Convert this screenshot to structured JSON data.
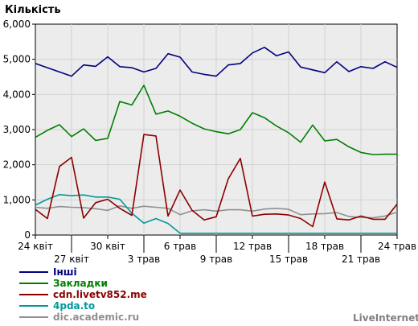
{
  "chart_data": {
    "type": "line",
    "ylabel": "Кількість",
    "ylim": [
      0,
      6000
    ],
    "yticks": [
      "0",
      "1,000",
      "2,000",
      "3,000",
      "4,000",
      "5,000",
      "6,000"
    ],
    "ytick_values": [
      0,
      1000,
      2000,
      3000,
      4000,
      5000,
      6000
    ],
    "grid": true,
    "legend_position": "bottom-left",
    "xticks": [
      {
        "label": "24 квіт",
        "index": 0,
        "row": 1
      },
      {
        "label": "27 квіт",
        "index": 3,
        "row": 2
      },
      {
        "label": "30 квіт",
        "index": 6,
        "row": 1
      },
      {
        "label": "3 трав",
        "index": 9,
        "row": 2
      },
      {
        "label": "6 трав",
        "index": 12,
        "row": 1
      },
      {
        "label": "9 трав",
        "index": 15,
        "row": 2
      },
      {
        "label": "12 трав",
        "index": 18,
        "row": 1
      },
      {
        "label": "15 трав",
        "index": 21,
        "row": 2
      },
      {
        "label": "18 трав",
        "index": 24,
        "row": 1
      },
      {
        "label": "21 трав",
        "index": 27,
        "row": 2
      },
      {
        "label": "24 трав",
        "index": 30,
        "row": 1
      }
    ],
    "series": [
      {
        "name": "Інші",
        "color": "#000080",
        "values": [
          4880,
          4760,
          4640,
          4520,
          4840,
          4800,
          5070,
          4790,
          4760,
          4640,
          4740,
          5160,
          5060,
          4640,
          4570,
          4520,
          4840,
          4880,
          5180,
          5340,
          5100,
          5210,
          4780,
          4700,
          4620,
          4930,
          4650,
          4790,
          4740,
          4930,
          4770
        ]
      },
      {
        "name": "Закладки",
        "color": "#008000",
        "values": [
          2780,
          2980,
          3140,
          2800,
          3020,
          2690,
          2750,
          3800,
          3700,
          4260,
          3440,
          3530,
          3380,
          3180,
          3020,
          2940,
          2880,
          3000,
          3480,
          3340,
          3100,
          2910,
          2640,
          3130,
          2680,
          2720,
          2510,
          2350,
          2290,
          2300,
          2300
        ]
      },
      {
        "name": "cdn.livetv852.me",
        "color": "#8b0000",
        "values": [
          730,
          470,
          1950,
          2210,
          480,
          920,
          1020,
          760,
          560,
          2860,
          2820,
          540,
          1280,
          700,
          430,
          520,
          1600,
          2180,
          540,
          590,
          600,
          570,
          470,
          240,
          1510,
          460,
          430,
          540,
          450,
          450,
          880
        ]
      },
      {
        "name": "4pda.to",
        "color": "#009999",
        "values": [
          850,
          1020,
          1150,
          1120,
          1140,
          1080,
          1080,
          1020,
          620,
          340,
          470,
          330,
          50,
          50,
          50,
          50,
          50,
          50,
          50,
          50,
          50,
          50,
          50,
          50,
          50,
          50,
          50,
          50,
          50,
          50,
          50
        ]
      },
      {
        "name": "dic.academic.ru",
        "color": "#909090",
        "values": [
          790,
          760,
          810,
          790,
          780,
          750,
          700,
          830,
          760,
          820,
          790,
          760,
          580,
          690,
          720,
          680,
          720,
          720,
          680,
          740,
          760,
          730,
          580,
          600,
          610,
          640,
          530,
          500,
          490,
          540,
          650
        ]
      }
    ]
  },
  "brand": "LiveInternet"
}
